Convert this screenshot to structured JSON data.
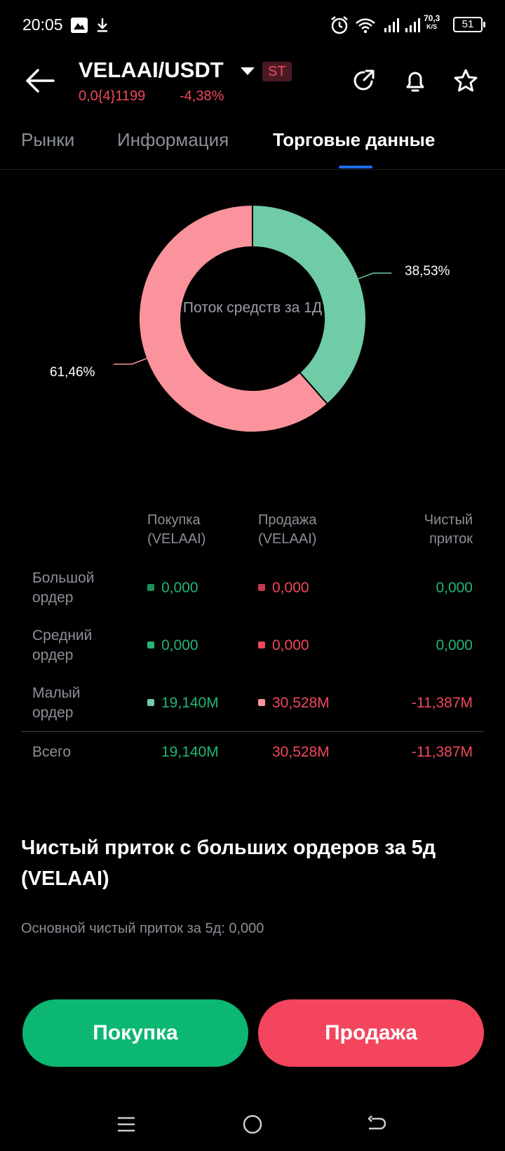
{
  "status_bar": {
    "time": "20:05",
    "speed_value": "70,3",
    "speed_unit": "K/S",
    "battery": "51"
  },
  "header": {
    "pair": "VELAAI/USDT",
    "badge": "ST",
    "price": "0,0{4}1199",
    "change": "-4,38%"
  },
  "tabs": [
    {
      "label": "Рынки"
    },
    {
      "label": "Информация"
    },
    {
      "label": "Торговые данные"
    }
  ],
  "chart_data": {
    "type": "pie",
    "title": "Поток средств за 1Д",
    "slices": [
      {
        "name": "Покупка",
        "value": 38.53,
        "label": "38,53%",
        "color": "#6fcca6"
      },
      {
        "name": "Продажа",
        "value": 61.46,
        "label": "61,46%",
        "color": "#fa939b"
      }
    ]
  },
  "table": {
    "columns": [
      "Покупка (VELAAI)",
      "Продажа (VELAAI)",
      "Чистый приток"
    ],
    "rows": [
      {
        "label": "Большой ордер",
        "buy": "0,000",
        "sell": "0,000",
        "net": "0,000"
      },
      {
        "label": "Средний ордер",
        "buy": "0,000",
        "sell": "0,000",
        "net": "0,000"
      },
      {
        "label": "Малый ордер",
        "buy": "19,140M",
        "sell": "30,528M",
        "net": "-11,387M"
      }
    ],
    "total": {
      "label": "Всего",
      "buy": "19,140M",
      "sell": "30,528M",
      "net": "-11,387M"
    },
    "dot_colors": {
      "large_buy": "#1a8f5c",
      "large_sell": "#c33a4c",
      "medium_buy": "#22b573",
      "medium_sell": "#f0485d",
      "small_buy": "#6fcca6",
      "small_sell": "#fa939b"
    }
  },
  "section": {
    "title": "Чистый приток с больших ордеров за 5д (VELAAI)",
    "subtitle": "Основной чистый приток за 5д: 0,000"
  },
  "actions": {
    "buy": "Покупка",
    "sell": "Продажа"
  },
  "colors": {
    "buy": "#0bb772",
    "sell": "#f4455e",
    "accent": "#1d6bf3"
  }
}
